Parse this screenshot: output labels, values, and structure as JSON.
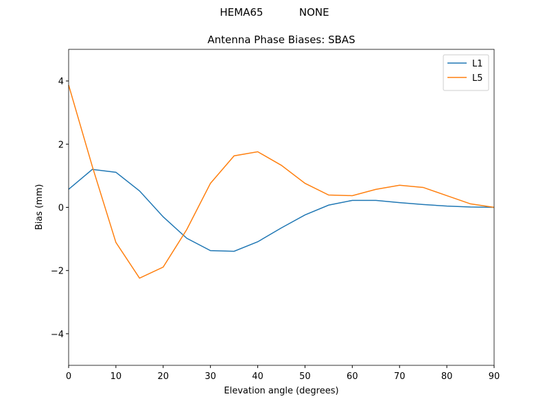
{
  "chart_data": {
    "type": "line",
    "suptitle": "HEMA65           NONE",
    "title": "Antenna Phase Biases: SBAS",
    "xlabel": "Elevation angle (degrees)",
    "ylabel": "Bias (mm)",
    "x": [
      0,
      5,
      10,
      15,
      20,
      25,
      30,
      35,
      40,
      45,
      50,
      55,
      60,
      65,
      70,
      75,
      80,
      85,
      90
    ],
    "series": [
      {
        "name": "L1",
        "color": "#1f77b4",
        "values": [
          0.57,
          1.2,
          1.11,
          0.52,
          -0.3,
          -0.98,
          -1.37,
          -1.39,
          -1.09,
          -0.65,
          -0.24,
          0.07,
          0.22,
          0.22,
          0.15,
          0.09,
          0.04,
          0.01,
          0
        ]
      },
      {
        "name": "L5",
        "color": "#ff7f0e",
        "values": [
          3.87,
          1.3,
          -1.11,
          -2.24,
          -1.89,
          -0.7,
          0.76,
          1.63,
          1.76,
          1.33,
          0.76,
          0.39,
          0.37,
          0.57,
          0.7,
          0.63,
          0.37,
          0.11,
          0
        ]
      }
    ],
    "xlim": [
      0,
      90
    ],
    "xticks": [
      0,
      10,
      20,
      30,
      40,
      50,
      60,
      70,
      80,
      90
    ],
    "ylim": [
      -5,
      5
    ],
    "yticks": [
      {
        "value": -4,
        "label": "−4"
      },
      {
        "value": -2,
        "label": "−2"
      },
      0,
      2,
      4
    ],
    "legend": "upper right"
  }
}
